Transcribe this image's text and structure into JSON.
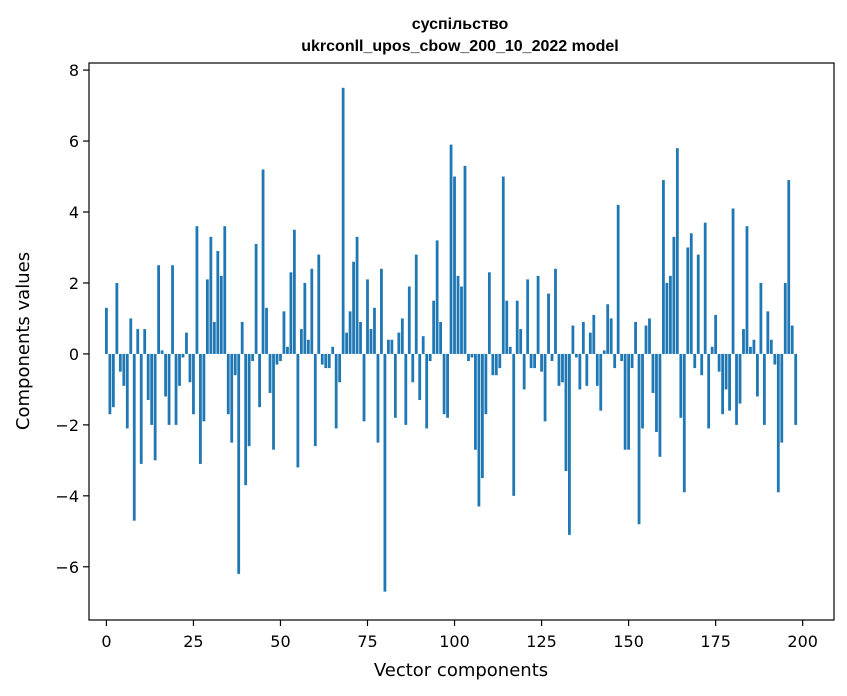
{
  "chart_data": {
    "type": "bar",
    "title_line1": "суспільство",
    "title_line2": "ukrconll_upos_cbow_200_10_2022 model",
    "xlabel": "Vector components",
    "ylabel": "Components values",
    "xlim": [
      -5,
      209
    ],
    "ylim": [
      -7.5,
      8.2
    ],
    "x_ticks": [
      0,
      25,
      50,
      75,
      100,
      125,
      150,
      175,
      200
    ],
    "x_tick_labels": [
      "0",
      "25",
      "50",
      "75",
      "100",
      "125",
      "150",
      "175",
      "200"
    ],
    "y_ticks": [
      -6,
      -4,
      -2,
      0,
      2,
      4,
      6,
      8
    ],
    "y_tick_labels": [
      "−6",
      "−4",
      "−2",
      "0",
      "2",
      "4",
      "6",
      "8"
    ],
    "bar_color": "#1f77b4",
    "values": [
      1.3,
      -1.7,
      -1.5,
      2.0,
      -0.5,
      -0.9,
      -2.1,
      1.0,
      -4.7,
      0.7,
      -3.1,
      0.7,
      -1.3,
      -2.0,
      -3.0,
      2.5,
      0.1,
      -1.2,
      -2.0,
      2.5,
      -2.0,
      -0.9,
      -0.1,
      0.6,
      -0.8,
      -1.7,
      3.6,
      -3.1,
      -1.9,
      2.1,
      3.3,
      0.9,
      2.9,
      2.2,
      3.6,
      -1.7,
      -2.5,
      -0.6,
      -6.2,
      0.9,
      -3.7,
      -2.6,
      -0.2,
      3.1,
      -1.5,
      5.2,
      1.3,
      -1.1,
      -2.7,
      -0.3,
      -0.2,
      1.2,
      0.2,
      2.3,
      3.5,
      -3.2,
      0.7,
      2.0,
      0.4,
      2.4,
      -2.6,
      2.8,
      -0.3,
      -0.4,
      -0.4,
      0.2,
      -2.1,
      -0.8,
      7.5,
      0.6,
      1.2,
      2.6,
      3.3,
      0.9,
      -1.9,
      2.1,
      0.7,
      1.3,
      -2.5,
      2.4,
      -6.7,
      0.4,
      0.4,
      -1.8,
      0.6,
      1.0,
      -2.0,
      1.9,
      -0.8,
      2.8,
      -1.3,
      0.5,
      -2.1,
      -0.2,
      1.5,
      3.2,
      0.9,
      -1.7,
      -1.8,
      5.9,
      5.0,
      2.2,
      1.9,
      5.3,
      -0.2,
      -0.1,
      -2.7,
      -4.3,
      -3.5,
      -1.7,
      2.3,
      -0.6,
      -0.6,
      -0.4,
      5.0,
      1.5,
      0.2,
      -4.0,
      1.5,
      0.7,
      -1.0,
      2.1,
      -0.4,
      -0.4,
      2.2,
      -0.5,
      -1.9,
      1.7,
      -0.2,
      2.4,
      -0.9,
      -0.8,
      -3.3,
      -5.1,
      0.8,
      -0.1,
      -1.0,
      0.9,
      -0.9,
      0.6,
      1.1,
      -0.9,
      -1.6,
      0.1,
      1.4,
      1.0,
      -0.4,
      4.2,
      -0.2,
      -2.7,
      -2.7,
      -0.4,
      0.9,
      -4.8,
      -2.1,
      0.8,
      1.0,
      -1.1,
      -2.2,
      -2.9,
      4.9,
      2.0,
      2.2,
      3.3,
      5.8,
      -1.8,
      -3.9,
      3.0,
      3.4,
      -0.4,
      2.8,
      -0.6,
      3.7,
      -2.1,
      0.2,
      1.1,
      -0.5,
      -1.7,
      -1.0,
      -1.6,
      4.1,
      -2.0,
      -1.4,
      0.7,
      3.6,
      0.2,
      0.4,
      -1.2,
      2.0,
      -2.0,
      1.2,
      0.4,
      -0.3,
      -3.9,
      -2.5,
      2.0,
      4.9,
      0.8,
      -2.0
    ]
  }
}
